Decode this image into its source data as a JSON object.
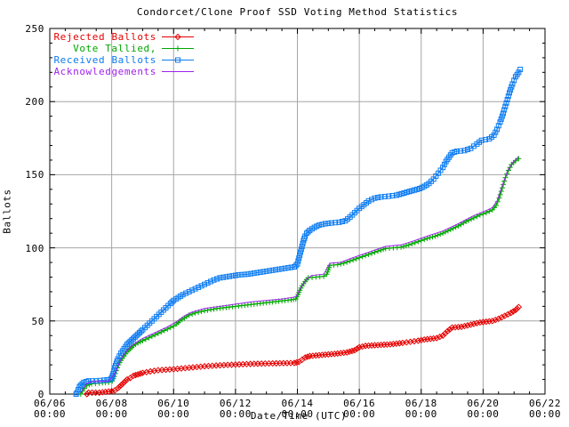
{
  "title": "Condorcet/Clone Proof SSD Voting Method Statistics",
  "colors": {
    "background": "#ffffff",
    "frame": "#000000",
    "grid": "#a6a6a6",
    "rejected": "#e60000",
    "tallied": "#00a800",
    "received": "#0c7cf2",
    "acknowledgements": "#a021f0"
  },
  "x_axis": {
    "label": "Date/Time (UTC)",
    "ticks": [
      {
        "date": "06/06",
        "time": "00:00"
      },
      {
        "date": "06/08",
        "time": "00:00"
      },
      {
        "date": "06/10",
        "time": "00:00"
      },
      {
        "date": "06/12",
        "time": "00:00"
      },
      {
        "date": "06/14",
        "time": "00:00"
      },
      {
        "date": "06/16",
        "time": "00:00"
      },
      {
        "date": "06/18",
        "time": "00:00"
      },
      {
        "date": "06/20",
        "time": "00:00"
      },
      {
        "date": "06/22",
        "time": "00:00"
      }
    ],
    "major_step_days": 2,
    "minor_step_days": 0.5
  },
  "y_axis": {
    "label": "Ballots",
    "ticks": [
      "0",
      "50",
      "100",
      "150",
      "200",
      "250"
    ],
    "major_step": 50,
    "minor_step": 10
  },
  "legend": [
    {
      "label": "Rejected Ballots",
      "series": "Rejected Ballots"
    },
    {
      "label": "Vote Tallied,",
      "series": "Vote Tallied"
    },
    {
      "label": "Received Ballots",
      "series": "Received Ballots"
    },
    {
      "label": "Acknowledgements",
      "series": "Acknowledgements"
    }
  ],
  "chart_data": {
    "type": "line",
    "title": "Condorcet/Clone Proof SSD Voting Method Statistics",
    "xlabel": "Date/Time (UTC)",
    "ylabel": "Ballots",
    "x_unit": "days since 06/06 00:00 UTC",
    "x_range": [
      0,
      16
    ],
    "y_range": [
      0,
      250
    ],
    "grid": true,
    "legend_position": "top-left",
    "series": [
      {
        "name": "Rejected Ballots",
        "color": "#e60000",
        "marker": "diamond",
        "points": [
          [
            1.2,
            0
          ],
          [
            1.25,
            1
          ],
          [
            1.6,
            1
          ],
          [
            2.0,
            2
          ],
          [
            2.1,
            2.5
          ],
          [
            2.2,
            4
          ],
          [
            2.3,
            6
          ],
          [
            2.4,
            8
          ],
          [
            2.5,
            10
          ],
          [
            2.6,
            11
          ],
          [
            2.7,
            12.5
          ],
          [
            2.85,
            13.5
          ],
          [
            3.0,
            14.5
          ],
          [
            3.25,
            15.5
          ],
          [
            3.5,
            16.3
          ],
          [
            4.0,
            17
          ],
          [
            4.5,
            18
          ],
          [
            5.0,
            19
          ],
          [
            5.5,
            19.7
          ],
          [
            6.0,
            20.2
          ],
          [
            6.6,
            20.7
          ],
          [
            7.2,
            21
          ],
          [
            7.9,
            21.3
          ],
          [
            8.05,
            22
          ],
          [
            8.15,
            23.5
          ],
          [
            8.25,
            25
          ],
          [
            8.4,
            26
          ],
          [
            8.8,
            26.8
          ],
          [
            9.2,
            27.5
          ],
          [
            9.6,
            28.5
          ],
          [
            9.85,
            30
          ],
          [
            10.0,
            32
          ],
          [
            10.2,
            33
          ],
          [
            10.6,
            33.5
          ],
          [
            11.0,
            34
          ],
          [
            11.4,
            35
          ],
          [
            11.9,
            36.5
          ],
          [
            12.1,
            37.3
          ],
          [
            12.5,
            38.3
          ],
          [
            12.7,
            40
          ],
          [
            12.85,
            43
          ],
          [
            13.0,
            45.5
          ],
          [
            13.3,
            46
          ],
          [
            13.6,
            47.5
          ],
          [
            13.9,
            49
          ],
          [
            14.3,
            50
          ],
          [
            14.5,
            51.5
          ],
          [
            14.7,
            53.5
          ],
          [
            14.9,
            55.5
          ],
          [
            15.05,
            57.5
          ],
          [
            15.15,
            59.5
          ]
        ]
      },
      {
        "name": "Vote Tallied",
        "color": "#00a800",
        "marker": "plus",
        "points": [
          [
            1.0,
            0
          ],
          [
            1.05,
            2
          ],
          [
            1.12,
            4
          ],
          [
            1.2,
            6
          ],
          [
            1.35,
            7
          ],
          [
            1.6,
            7.5
          ],
          [
            1.9,
            8
          ],
          [
            2.02,
            9
          ],
          [
            2.08,
            12
          ],
          [
            2.15,
            16
          ],
          [
            2.22,
            20
          ],
          [
            2.3,
            23
          ],
          [
            2.4,
            26
          ],
          [
            2.5,
            29
          ],
          [
            2.6,
            31
          ],
          [
            2.7,
            33
          ],
          [
            2.85,
            35
          ],
          [
            3.0,
            36.5
          ],
          [
            3.2,
            38.5
          ],
          [
            3.4,
            40.5
          ],
          [
            3.6,
            42.5
          ],
          [
            3.8,
            44.5
          ],
          [
            4.0,
            46.5
          ],
          [
            4.1,
            48
          ],
          [
            4.2,
            50
          ],
          [
            4.35,
            52
          ],
          [
            4.5,
            54
          ],
          [
            4.7,
            55.5
          ],
          [
            5.0,
            57
          ],
          [
            5.4,
            58.5
          ],
          [
            5.8,
            59.5
          ],
          [
            6.2,
            60.5
          ],
          [
            6.6,
            61.5
          ],
          [
            7.0,
            62.5
          ],
          [
            7.4,
            63.5
          ],
          [
            7.8,
            64.5
          ],
          [
            7.95,
            65
          ],
          [
            8.02,
            68
          ],
          [
            8.08,
            71
          ],
          [
            8.15,
            74
          ],
          [
            8.25,
            77
          ],
          [
            8.35,
            79.5
          ],
          [
            8.6,
            80
          ],
          [
            8.85,
            80.5
          ],
          [
            8.95,
            82
          ],
          [
            9.0,
            85
          ],
          [
            9.05,
            88
          ],
          [
            9.3,
            88.5
          ],
          [
            9.5,
            89.5
          ],
          [
            9.7,
            91
          ],
          [
            9.9,
            92.5
          ],
          [
            10.1,
            94
          ],
          [
            10.3,
            95.5
          ],
          [
            10.5,
            97
          ],
          [
            10.7,
            98.5
          ],
          [
            10.85,
            99.5
          ],
          [
            11.1,
            100
          ],
          [
            11.35,
            100.5
          ],
          [
            11.6,
            102
          ],
          [
            11.8,
            103.5
          ],
          [
            12.0,
            105
          ],
          [
            12.2,
            106.5
          ],
          [
            12.45,
            108
          ],
          [
            12.7,
            110
          ],
          [
            12.95,
            112.5
          ],
          [
            13.2,
            115
          ],
          [
            13.45,
            118
          ],
          [
            13.7,
            120.5
          ],
          [
            13.9,
            122.5
          ],
          [
            14.1,
            124
          ],
          [
            14.3,
            126
          ],
          [
            14.42,
            129
          ],
          [
            14.52,
            134
          ],
          [
            14.62,
            141
          ],
          [
            14.72,
            148
          ],
          [
            14.82,
            153
          ],
          [
            14.92,
            157
          ],
          [
            15.05,
            159.5
          ],
          [
            15.15,
            161
          ]
        ]
      },
      {
        "name": "Received Ballots",
        "color": "#0c7cf2",
        "marker": "square",
        "points": [
          [
            0.85,
            0
          ],
          [
            0.88,
            1
          ],
          [
            0.92,
            3
          ],
          [
            0.96,
            5
          ],
          [
            1.0,
            6
          ],
          [
            1.05,
            7
          ],
          [
            1.1,
            8
          ],
          [
            1.25,
            9
          ],
          [
            1.5,
            9
          ],
          [
            1.75,
            9.5
          ],
          [
            1.95,
            10
          ],
          [
            2.0,
            11
          ],
          [
            2.05,
            14
          ],
          [
            2.1,
            18
          ],
          [
            2.15,
            21
          ],
          [
            2.2,
            24
          ],
          [
            2.25,
            26
          ],
          [
            2.3,
            28
          ],
          [
            2.4,
            31
          ],
          [
            2.5,
            34
          ],
          [
            2.6,
            36
          ],
          [
            2.7,
            38
          ],
          [
            2.8,
            40
          ],
          [
            2.9,
            42
          ],
          [
            3.0,
            44
          ],
          [
            3.15,
            47
          ],
          [
            3.3,
            50
          ],
          [
            3.45,
            53
          ],
          [
            3.6,
            56
          ],
          [
            3.75,
            59
          ],
          [
            3.9,
            62
          ],
          [
            4.0,
            64
          ],
          [
            4.15,
            66
          ],
          [
            4.3,
            68
          ],
          [
            4.5,
            70
          ],
          [
            4.7,
            72
          ],
          [
            4.9,
            74
          ],
          [
            5.1,
            76
          ],
          [
            5.3,
            78
          ],
          [
            5.5,
            79.5
          ],
          [
            5.8,
            80.5
          ],
          [
            6.1,
            81.5
          ],
          [
            6.4,
            82
          ],
          [
            6.7,
            83
          ],
          [
            7.0,
            84
          ],
          [
            7.3,
            85
          ],
          [
            7.6,
            86
          ],
          [
            7.9,
            87
          ],
          [
            8.0,
            89
          ],
          [
            8.05,
            93
          ],
          [
            8.1,
            97
          ],
          [
            8.15,
            101
          ],
          [
            8.2,
            105
          ],
          [
            8.25,
            108
          ],
          [
            8.3,
            110
          ],
          [
            8.4,
            112
          ],
          [
            8.55,
            114
          ],
          [
            8.7,
            115.5
          ],
          [
            8.9,
            116.5
          ],
          [
            9.1,
            117
          ],
          [
            9.35,
            117.5
          ],
          [
            9.55,
            118.5
          ],
          [
            9.7,
            121
          ],
          [
            9.85,
            124
          ],
          [
            10.0,
            127
          ],
          [
            10.15,
            129.5
          ],
          [
            10.3,
            132
          ],
          [
            10.5,
            134
          ],
          [
            10.7,
            134.8
          ],
          [
            10.95,
            135.3
          ],
          [
            11.2,
            136
          ],
          [
            11.45,
            137.5
          ],
          [
            11.7,
            139
          ],
          [
            11.95,
            140.5
          ],
          [
            12.1,
            142
          ],
          [
            12.25,
            144
          ],
          [
            12.4,
            147
          ],
          [
            12.55,
            151
          ],
          [
            12.7,
            155
          ],
          [
            12.8,
            159
          ],
          [
            12.9,
            162
          ],
          [
            13.0,
            165
          ],
          [
            13.15,
            166
          ],
          [
            13.4,
            166.5
          ],
          [
            13.6,
            168
          ],
          [
            13.8,
            171
          ],
          [
            13.95,
            173.5
          ],
          [
            14.2,
            174.5
          ],
          [
            14.35,
            177
          ],
          [
            14.45,
            181
          ],
          [
            14.55,
            186
          ],
          [
            14.65,
            192
          ],
          [
            14.75,
            199
          ],
          [
            14.85,
            206
          ],
          [
            14.95,
            212
          ],
          [
            15.05,
            217
          ],
          [
            15.15,
            220
          ],
          [
            15.2,
            222
          ]
        ]
      },
      {
        "name": "Acknowledgements",
        "color": "#a021f0",
        "marker": "none",
        "points": [
          [
            1.0,
            1
          ],
          [
            1.2,
            7.5
          ],
          [
            1.35,
            8.5
          ],
          [
            1.9,
            9
          ],
          [
            2.1,
            14
          ],
          [
            2.3,
            24
          ],
          [
            2.5,
            30
          ],
          [
            2.7,
            34
          ],
          [
            3.0,
            38
          ],
          [
            3.4,
            42
          ],
          [
            3.8,
            46
          ],
          [
            4.1,
            49.5
          ],
          [
            4.35,
            53.5
          ],
          [
            4.6,
            56
          ],
          [
            5.0,
            58.5
          ],
          [
            5.5,
            60
          ],
          [
            6.0,
            61.5
          ],
          [
            6.5,
            63
          ],
          [
            7.0,
            64
          ],
          [
            7.5,
            65
          ],
          [
            7.95,
            66.5
          ],
          [
            8.1,
            72.5
          ],
          [
            8.3,
            78.5
          ],
          [
            8.45,
            81
          ],
          [
            8.85,
            82
          ],
          [
            9.05,
            89.5
          ],
          [
            9.4,
            90
          ],
          [
            9.7,
            92.5
          ],
          [
            10.1,
            95.5
          ],
          [
            10.5,
            98.5
          ],
          [
            10.85,
            101
          ],
          [
            11.35,
            102
          ],
          [
            11.8,
            105
          ],
          [
            12.2,
            108
          ],
          [
            12.7,
            111.5
          ],
          [
            13.2,
            116.5
          ],
          [
            13.7,
            122
          ],
          [
            14.1,
            125.5
          ],
          [
            14.3,
            127.5
          ],
          [
            14.45,
            132
          ],
          [
            14.62,
            142.5
          ],
          [
            14.8,
            153
          ],
          [
            14.95,
            158
          ],
          [
            15.15,
            162.5
          ]
        ]
      }
    ]
  }
}
